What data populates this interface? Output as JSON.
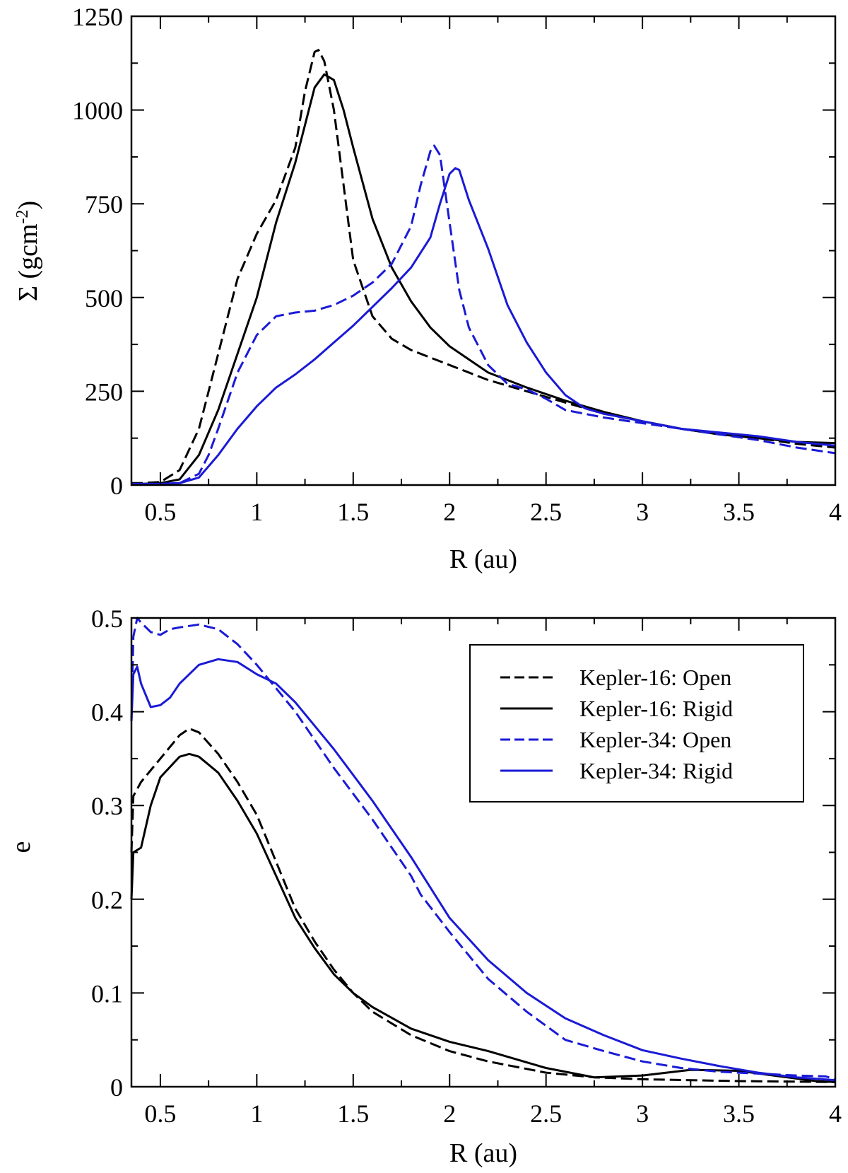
{
  "colors": {
    "black": "#000000",
    "blue": "#1a1ad6"
  },
  "chart_data": [
    {
      "type": "line",
      "panel": "top",
      "title": "",
      "xlabel": "R (au)",
      "ylabel_main": "Σ (gcm",
      "ylabel_sup": "-2",
      "ylabel_tail": ")",
      "xlim": [
        0.35,
        4
      ],
      "ylim": [
        0,
        1250
      ],
      "xticks": [
        {
          "v": 0.5,
          "label": "0.5"
        },
        {
          "v": 1,
          "label": "1"
        },
        {
          "v": 1.5,
          "label": "1.5"
        },
        {
          "v": 2,
          "label": "2"
        },
        {
          "v": 2.5,
          "label": "2.5"
        },
        {
          "v": 3,
          "label": "3"
        },
        {
          "v": 3.5,
          "label": "3.5"
        },
        {
          "v": 4,
          "label": "4"
        }
      ],
      "yticks": [
        {
          "v": 0,
          "label": "0"
        },
        {
          "v": 250,
          "label": "250"
        },
        {
          "v": 500,
          "label": "500"
        },
        {
          "v": 750,
          "label": "750"
        },
        {
          "v": 1000,
          "label": "1000"
        },
        {
          "v": 1250,
          "label": "1250"
        }
      ],
      "series": [
        {
          "name": "Kepler-16: Open",
          "color": "#000000",
          "dash": true,
          "x": [
            0.35,
            0.4,
            0.5,
            0.6,
            0.7,
            0.75,
            0.8,
            0.85,
            0.9,
            1.0,
            1.1,
            1.2,
            1.25,
            1.3,
            1.32,
            1.35,
            1.4,
            1.45,
            1.5,
            1.6,
            1.7,
            1.8,
            1.9,
            2.0,
            2.2,
            2.4,
            2.6,
            2.8,
            3.0,
            3.2,
            3.4,
            3.6,
            3.8,
            4.0
          ],
          "y": [
            5,
            5,
            8,
            40,
            150,
            250,
            350,
            450,
            550,
            670,
            760,
            900,
            1050,
            1155,
            1160,
            1130,
            1000,
            800,
            600,
            450,
            390,
            360,
            340,
            320,
            280,
            250,
            220,
            190,
            170,
            150,
            135,
            125,
            110,
            100
          ]
        },
        {
          "name": "Kepler-16: Rigid",
          "color": "#000000",
          "dash": false,
          "x": [
            0.35,
            0.4,
            0.5,
            0.6,
            0.7,
            0.8,
            0.9,
            1.0,
            1.1,
            1.2,
            1.25,
            1.3,
            1.35,
            1.4,
            1.45,
            1.5,
            1.6,
            1.7,
            1.8,
            1.9,
            2.0,
            2.2,
            2.4,
            2.6,
            2.8,
            3.0,
            3.2,
            3.4,
            3.6,
            3.8,
            4.0
          ],
          "y": [
            3,
            3,
            5,
            15,
            80,
            200,
            350,
            500,
            700,
            860,
            960,
            1060,
            1095,
            1080,
            1000,
            900,
            710,
            580,
            490,
            420,
            370,
            300,
            260,
            225,
            195,
            170,
            150,
            135,
            125,
            115,
            112
          ]
        },
        {
          "name": "Kepler-34: Open",
          "color": "#1a1ad6",
          "dash": true,
          "x": [
            0.35,
            0.5,
            0.6,
            0.7,
            0.75,
            0.8,
            0.9,
            1.0,
            1.1,
            1.2,
            1.3,
            1.4,
            1.5,
            1.6,
            1.7,
            1.8,
            1.85,
            1.9,
            1.92,
            1.95,
            2.0,
            2.05,
            2.1,
            2.2,
            2.3,
            2.4,
            2.5,
            2.6,
            2.8,
            3.0,
            3.2,
            3.4,
            3.6,
            3.8,
            4.0
          ],
          "y": [
            3,
            3,
            5,
            30,
            80,
            150,
            300,
            400,
            450,
            460,
            465,
            480,
            505,
            540,
            590,
            690,
            800,
            890,
            905,
            880,
            700,
            520,
            420,
            320,
            270,
            255,
            230,
            200,
            180,
            165,
            150,
            135,
            120,
            100,
            85
          ]
        },
        {
          "name": "Kepler-34: Rigid",
          "color": "#1a1ad6",
          "dash": false,
          "x": [
            0.35,
            0.5,
            0.6,
            0.7,
            0.8,
            0.9,
            1.0,
            1.1,
            1.2,
            1.3,
            1.4,
            1.5,
            1.6,
            1.7,
            1.8,
            1.9,
            1.95,
            2.0,
            2.03,
            2.05,
            2.1,
            2.2,
            2.3,
            2.4,
            2.5,
            2.6,
            2.7,
            2.8,
            3.0,
            3.2,
            3.4,
            3.6,
            3.8,
            4.0
          ],
          "y": [
            3,
            3,
            5,
            20,
            80,
            150,
            210,
            260,
            295,
            335,
            380,
            425,
            475,
            525,
            580,
            660,
            750,
            830,
            845,
            840,
            760,
            630,
            480,
            380,
            300,
            240,
            205,
            190,
            170,
            150,
            140,
            130,
            115,
            105
          ]
        }
      ]
    },
    {
      "type": "line",
      "panel": "bottom",
      "title": "",
      "xlabel": "R (au)",
      "ylabel": "e",
      "xlim": [
        0.35,
        4
      ],
      "ylim": [
        0,
        0.5
      ],
      "xticks": [
        {
          "v": 0.5,
          "label": "0.5"
        },
        {
          "v": 1,
          "label": "1"
        },
        {
          "v": 1.5,
          "label": "1.5"
        },
        {
          "v": 2,
          "label": "2"
        },
        {
          "v": 2.5,
          "label": "2.5"
        },
        {
          "v": 3,
          "label": "3"
        },
        {
          "v": 3.5,
          "label": "3.5"
        },
        {
          "v": 4,
          "label": "4"
        }
      ],
      "yticks": [
        {
          "v": 0,
          "label": "0"
        },
        {
          "v": 0.1,
          "label": "0.1"
        },
        {
          "v": 0.2,
          "label": "0.2"
        },
        {
          "v": 0.3,
          "label": "0.3"
        },
        {
          "v": 0.4,
          "label": "0.4"
        },
        {
          "v": 0.5,
          "label": "0.5"
        }
      ],
      "legend_position": "top-right",
      "series": [
        {
          "name": "Kepler-16: Open",
          "color": "#000000",
          "dash": true,
          "x": [
            0.35,
            0.36,
            0.4,
            0.5,
            0.6,
            0.65,
            0.7,
            0.8,
            0.9,
            1.0,
            1.1,
            1.2,
            1.3,
            1.4,
            1.5,
            1.6,
            1.8,
            2.0,
            2.2,
            2.5,
            2.75,
            3.0,
            3.5,
            4.0
          ],
          "y": [
            0.25,
            0.31,
            0.325,
            0.35,
            0.375,
            0.382,
            0.378,
            0.355,
            0.325,
            0.29,
            0.24,
            0.19,
            0.155,
            0.125,
            0.1,
            0.08,
            0.055,
            0.038,
            0.027,
            0.015,
            0.01,
            0.008,
            0.006,
            0.005
          ]
        },
        {
          "name": "Kepler-16: Rigid",
          "color": "#000000",
          "dash": false,
          "x": [
            0.35,
            0.36,
            0.4,
            0.45,
            0.5,
            0.6,
            0.65,
            0.7,
            0.8,
            0.9,
            1.0,
            1.1,
            1.2,
            1.3,
            1.4,
            1.5,
            1.6,
            1.8,
            2.0,
            2.2,
            2.5,
            2.75,
            3.0,
            3.25,
            3.5,
            3.75,
            3.9,
            4.0
          ],
          "y": [
            0.2,
            0.25,
            0.255,
            0.3,
            0.33,
            0.352,
            0.355,
            0.352,
            0.335,
            0.305,
            0.27,
            0.225,
            0.18,
            0.148,
            0.12,
            0.1,
            0.085,
            0.062,
            0.048,
            0.038,
            0.02,
            0.01,
            0.012,
            0.018,
            0.017,
            0.01,
            0.006,
            0.005
          ]
        },
        {
          "name": "Kepler-34: Open",
          "color": "#1a1ad6",
          "dash": true,
          "x": [
            0.35,
            0.36,
            0.38,
            0.4,
            0.45,
            0.5,
            0.55,
            0.6,
            0.7,
            0.8,
            0.9,
            1.0,
            1.2,
            1.4,
            1.6,
            1.8,
            1.85,
            2.0,
            2.2,
            2.4,
            2.6,
            2.8,
            3.0,
            3.2,
            3.4,
            3.6,
            3.8,
            3.95,
            4.0
          ],
          "y": [
            0.39,
            0.48,
            0.5,
            0.495,
            0.485,
            0.482,
            0.488,
            0.49,
            0.493,
            0.488,
            0.472,
            0.45,
            0.4,
            0.34,
            0.285,
            0.225,
            0.205,
            0.165,
            0.115,
            0.08,
            0.05,
            0.038,
            0.027,
            0.02,
            0.016,
            0.014,
            0.012,
            0.011,
            0.008
          ]
        },
        {
          "name": "Kepler-34: Rigid",
          "color": "#1a1ad6",
          "dash": false,
          "x": [
            0.35,
            0.36,
            0.38,
            0.4,
            0.45,
            0.5,
            0.55,
            0.6,
            0.7,
            0.8,
            0.9,
            1.0,
            1.1,
            1.2,
            1.4,
            1.6,
            1.8,
            2.0,
            2.2,
            2.4,
            2.6,
            2.8,
            3.0,
            3.2,
            3.4,
            3.6,
            3.8,
            4.0
          ],
          "y": [
            0.39,
            0.44,
            0.448,
            0.43,
            0.405,
            0.407,
            0.415,
            0.43,
            0.45,
            0.456,
            0.453,
            0.44,
            0.43,
            0.41,
            0.36,
            0.305,
            0.245,
            0.18,
            0.135,
            0.1,
            0.073,
            0.055,
            0.039,
            0.03,
            0.022,
            0.015,
            0.01,
            0.007
          ]
        }
      ]
    }
  ]
}
